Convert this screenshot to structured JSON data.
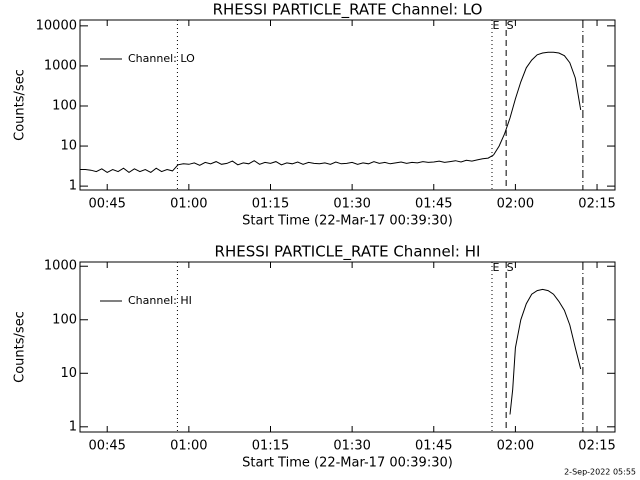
{
  "chart_data": [
    {
      "type": "line",
      "title": "RHESSI PARTICLE_RATE Channel: LO",
      "xlabel": "Start Time (22-Mar-17 00:39:30)",
      "ylabel": "Counts/sec",
      "ylog": true,
      "xlim": [
        40,
        138.3
      ],
      "ylim": [
        0.8,
        14000
      ],
      "xticks": [
        {
          "value": 45,
          "label": "00:45"
        },
        {
          "value": 60,
          "label": "01:00"
        },
        {
          "value": 75,
          "label": "01:15"
        },
        {
          "value": 90,
          "label": "01:30"
        },
        {
          "value": 105,
          "label": "01:45"
        },
        {
          "value": 120,
          "label": "02:00"
        },
        {
          "value": 135,
          "label": "02:15"
        }
      ],
      "yticks": [
        1,
        10,
        100,
        1000,
        10000
      ],
      "legend": "upper left",
      "markers": [
        {
          "x": 57.9,
          "style": "dotted"
        },
        {
          "x": 115.7,
          "style": "dotted"
        },
        {
          "x": 118.3,
          "style": "dashed"
        },
        {
          "x": 132.4,
          "style": "dashdot"
        }
      ],
      "annotations": [
        {
          "text": "E",
          "x": 115.7
        },
        {
          "text": "S",
          "x": 118.3
        }
      ],
      "x": [
        40,
        41,
        42,
        43,
        44,
        45,
        46,
        47,
        48,
        49,
        50,
        51,
        52,
        53,
        54,
        55,
        56,
        57,
        58,
        59,
        60,
        61,
        62,
        63,
        64,
        65,
        66,
        67,
        68,
        69,
        70,
        71,
        72,
        73,
        74,
        75,
        76,
        77,
        78,
        79,
        80,
        81,
        82,
        83,
        84,
        85,
        86,
        87,
        88,
        89,
        90,
        91,
        92,
        93,
        94,
        95,
        96,
        97,
        98,
        99,
        100,
        101,
        102,
        103,
        104,
        105,
        106,
        107,
        108,
        109,
        110,
        111,
        112,
        113,
        114,
        115,
        116,
        117,
        118,
        119,
        120,
        121,
        122,
        123,
        124,
        125,
        126,
        127,
        128,
        129,
        130,
        131,
        132
      ],
      "series": [
        {
          "name": "Channel: LO",
          "color": "#000000",
          "values": [
            2.6,
            2.6,
            2.5,
            2.3,
            2.7,
            2.2,
            2.6,
            2.3,
            2.8,
            2.2,
            2.7,
            2.3,
            2.6,
            2.2,
            2.8,
            2.3,
            2.6,
            2.4,
            3.4,
            3.6,
            3.5,
            3.8,
            3.3,
            3.9,
            3.6,
            4.1,
            3.5,
            3.7,
            4.2,
            3.4,
            3.8,
            3.6,
            4.3,
            3.5,
            3.9,
            3.7,
            4.1,
            3.4,
            3.8,
            3.6,
            4.0,
            3.5,
            3.9,
            3.7,
            3.6,
            3.8,
            3.5,
            4.0,
            3.6,
            3.7,
            3.9,
            3.5,
            3.8,
            3.6,
            4.1,
            3.7,
            3.9,
            3.6,
            3.8,
            4.0,
            3.7,
            3.9,
            3.8,
            4.1,
            3.9,
            4.0,
            4.2,
            3.9,
            4.1,
            4.3,
            4.0,
            4.4,
            4.2,
            4.5,
            4.8,
            5,
            6,
            10,
            20,
            50,
            150,
            400,
            900,
            1400,
            1900,
            2100,
            2200,
            2200,
            2100,
            1800,
            1200,
            500,
            80
          ]
        }
      ]
    },
    {
      "type": "line",
      "title": "RHESSI PARTICLE_RATE Channel: HI",
      "xlabel": "Start Time (22-Mar-17 00:39:30)",
      "ylabel": "Counts/sec",
      "ylog": true,
      "xlim": [
        40,
        138.3
      ],
      "ylim": [
        0.8,
        1200
      ],
      "xticks": [
        {
          "value": 45,
          "label": "00:45"
        },
        {
          "value": 60,
          "label": "01:00"
        },
        {
          "value": 75,
          "label": "01:15"
        },
        {
          "value": 90,
          "label": "01:30"
        },
        {
          "value": 105,
          "label": "01:45"
        },
        {
          "value": 120,
          "label": "02:00"
        },
        {
          "value": 135,
          "label": "02:15"
        }
      ],
      "yticks": [
        1,
        10,
        100,
        1000
      ],
      "legend": "upper left",
      "markers": [
        {
          "x": 57.9,
          "style": "dotted"
        },
        {
          "x": 115.7,
          "style": "dotted"
        },
        {
          "x": 118.3,
          "style": "dashed"
        },
        {
          "x": 132.4,
          "style": "dashdot"
        }
      ],
      "annotations": [
        {
          "text": "E",
          "x": 115.7
        },
        {
          "text": "S",
          "x": 118.3
        }
      ],
      "x": [
        119,
        119.5,
        120,
        121,
        122,
        123,
        124,
        125,
        126,
        127,
        128,
        129,
        130,
        131,
        132
      ],
      "series": [
        {
          "name": "Channel: HI",
          "color": "#000000",
          "values": [
            1.7,
            5,
            30,
            100,
            200,
            300,
            350,
            370,
            350,
            300,
            220,
            150,
            80,
            30,
            12
          ]
        }
      ]
    }
  ],
  "footer": "2-Sep-2022 05:55"
}
